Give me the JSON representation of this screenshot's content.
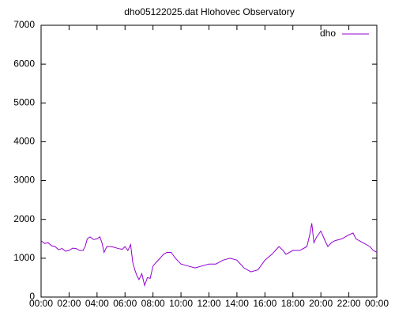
{
  "chart_data": {
    "type": "line",
    "title": "dho05122025.dat Hlohovec Observatory",
    "x": [
      0,
      0.25,
      0.5,
      0.75,
      1,
      1.25,
      1.5,
      1.75,
      2,
      2.25,
      2.5,
      2.75,
      3,
      3.15,
      3.3,
      3.5,
      3.75,
      4,
      4.2,
      4.35,
      4.5,
      4.7,
      5,
      5.25,
      5.5,
      5.8,
      6,
      6.2,
      6.4,
      6.55,
      6.7,
      6.85,
      7,
      7.2,
      7.4,
      7.6,
      7.8,
      8,
      8.25,
      8.5,
      8.75,
      9,
      9.3,
      9.6,
      10,
      10.5,
      11,
      11.5,
      12,
      12.5,
      13,
      13.5,
      14,
      14.5,
      15,
      15.5,
      16,
      16.5,
      17,
      17.3,
      17.5,
      18,
      18.5,
      19,
      19.2,
      19.35,
      19.5,
      19.7,
      20,
      20.3,
      20.5,
      20.75,
      21,
      21.5,
      22,
      22.3,
      22.5,
      23,
      23.5,
      23.75,
      24
    ],
    "series": [
      {
        "name": "dho",
        "color": "#9400d3",
        "values": [
          1450,
          1380,
          1400,
          1320,
          1300,
          1220,
          1250,
          1180,
          1200,
          1260,
          1250,
          1200,
          1200,
          1300,
          1500,
          1550,
          1480,
          1500,
          1550,
          1400,
          1150,
          1300,
          1300,
          1280,
          1250,
          1230,
          1300,
          1200,
          1350,
          900,
          700,
          550,
          450,
          600,
          300,
          500,
          480,
          800,
          900,
          1000,
          1100,
          1150,
          1150,
          1000,
          850,
          800,
          750,
          800,
          850,
          850,
          950,
          1000,
          950,
          750,
          650,
          700,
          950,
          1100,
          1300,
          1200,
          1100,
          1200,
          1200,
          1300,
          1600,
          1900,
          1400,
          1550,
          1700,
          1450,
          1300,
          1400,
          1450,
          1500,
          1600,
          1650,
          1500,
          1400,
          1300,
          1200,
          1150
        ]
      }
    ],
    "xlim": [
      0,
      24
    ],
    "xticks": [
      {
        "value": 0,
        "label": "00:00"
      },
      {
        "value": 2,
        "label": "02:00"
      },
      {
        "value": 4,
        "label": "04:00"
      },
      {
        "value": 6,
        "label": "06:00"
      },
      {
        "value": 8,
        "label": "08:00"
      },
      {
        "value": 10,
        "label": "10:00"
      },
      {
        "value": 12,
        "label": "12:00"
      },
      {
        "value": 14,
        "label": "14:00"
      },
      {
        "value": 16,
        "label": "16:00"
      },
      {
        "value": 18,
        "label": "18:00"
      },
      {
        "value": 20,
        "label": "20:00"
      },
      {
        "value": 22,
        "label": "22:00"
      },
      {
        "value": 24,
        "label": "00:00"
      }
    ],
    "ylim": [
      0,
      7000
    ],
    "yticks": [
      0,
      1000,
      2000,
      3000,
      4000,
      5000,
      6000,
      7000
    ],
    "legend": "top-right"
  }
}
